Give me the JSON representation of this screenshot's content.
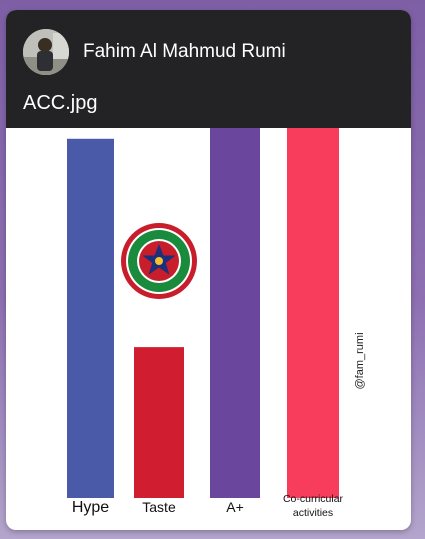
{
  "post": {
    "author_name": "Fahim Al Mahmud Rumi",
    "file_name": "ACC.jpg"
  },
  "watermark": "@fam_rumi",
  "chart_data": {
    "type": "bar",
    "categories": [
      "Hype",
      "Taste",
      "A+",
      "Co-curricular activities"
    ],
    "category_lines": [
      [
        "Hype"
      ],
      [
        "Taste"
      ],
      [
        "A+"
      ],
      [
        "Co-curricular",
        "activities"
      ]
    ],
    "values": [
      100,
      42,
      103,
      103
    ],
    "colors": [
      "#4a5aa8",
      "#d01d30",
      "#6a479c",
      "#f73c5c"
    ],
    "ylim": [
      0,
      103
    ],
    "grid": false,
    "legend": "none"
  }
}
